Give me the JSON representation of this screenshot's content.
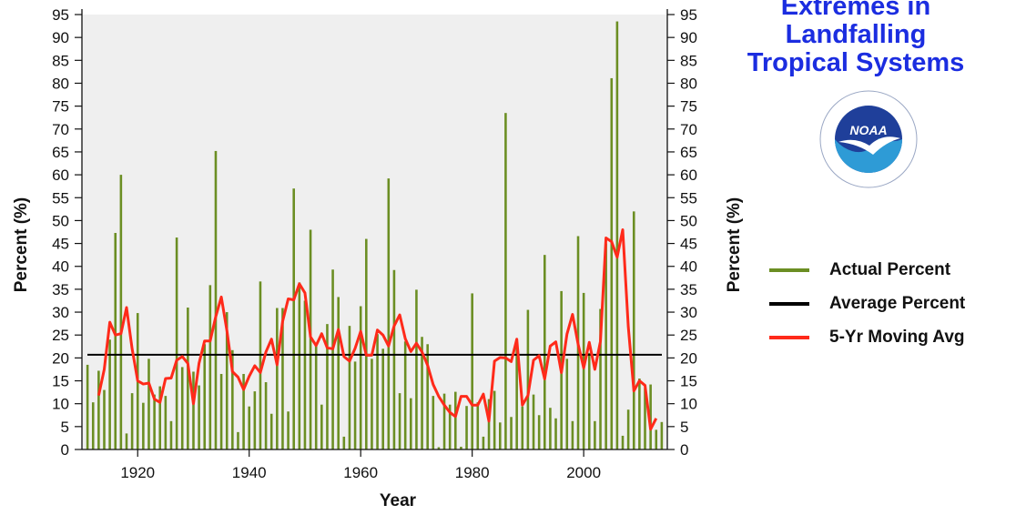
{
  "title_lines": [
    "Extremes in",
    "Landfalling",
    "Tropical Systems"
  ],
  "logo": {
    "text": "NOAA",
    "icon": "noaa-logo-icon"
  },
  "colors": {
    "bars": "#6b8e23",
    "average": "#000000",
    "moving_avg": "#ff2a1a",
    "plot_bg": "#efefef",
    "title": "#1b2de0"
  },
  "chart_data": {
    "type": "bar",
    "xlabel": "Year",
    "ylabel": "Percent (%)",
    "ylabel_right": "Percent (%)",
    "xlim": [
      1910,
      2015
    ],
    "ylim": [
      0,
      95
    ],
    "xticks": [
      1920,
      1940,
      1960,
      1980,
      2000
    ],
    "yticks": [
      0,
      5,
      10,
      15,
      20,
      25,
      30,
      35,
      40,
      45,
      50,
      55,
      60,
      65,
      70,
      75,
      80,
      85,
      90,
      95
    ],
    "grid": false,
    "legend_position": "right",
    "series": [
      {
        "name": "Actual Percent",
        "kind": "bar",
        "x": [
          1911,
          1912,
          1913,
          1914,
          1915,
          1916,
          1917,
          1918,
          1919,
          1920,
          1921,
          1922,
          1923,
          1924,
          1925,
          1926,
          1927,
          1928,
          1929,
          1930,
          1931,
          1932,
          1933,
          1934,
          1935,
          1936,
          1937,
          1938,
          1939,
          1940,
          1941,
          1942,
          1943,
          1944,
          1945,
          1946,
          1947,
          1948,
          1949,
          1950,
          1951,
          1952,
          1953,
          1954,
          1955,
          1956,
          1957,
          1958,
          1959,
          1960,
          1961,
          1962,
          1963,
          1964,
          1965,
          1966,
          1967,
          1968,
          1969,
          1970,
          1971,
          1972,
          1973,
          1974,
          1975,
          1976,
          1977,
          1978,
          1979,
          1980,
          1981,
          1982,
          1983,
          1984,
          1985,
          1986,
          1987,
          1988,
          1989,
          1990,
          1991,
          1992,
          1993,
          1994,
          1995,
          1996,
          1997,
          1998,
          1999,
          2000,
          2001,
          2002,
          2003,
          2004,
          2005,
          2006,
          2007,
          2008,
          2009,
          2010,
          2011,
          2012,
          2013,
          2014
        ],
        "values": [
          18.5,
          10.3,
          17.2,
          13,
          24,
          47.3,
          60,
          3.5,
          12.3,
          29.8,
          10.2,
          19.8,
          12,
          13.8,
          11.7,
          6.2,
          46.3,
          18,
          31,
          17,
          14,
          23,
          35.9,
          65.2,
          16.5,
          30,
          21.7,
          3.8,
          16.5,
          9.4,
          12.7,
          36.7,
          14.7,
          7.8,
          30.9,
          30.9,
          8.3,
          57,
          36.5,
          32.5,
          48,
          23,
          9.8,
          27.4,
          39.3,
          33.3,
          2.8,
          27,
          19.2,
          31.3,
          46,
          19.8,
          25.2,
          22,
          59.2,
          39.2,
          12.3,
          23.6,
          11.2,
          34.9,
          24.6,
          23,
          11.7,
          0.5,
          12.2,
          9.8,
          12.6,
          0.6,
          9.5,
          34.1,
          10.3,
          2.8,
          11,
          12.8,
          5.9,
          73.5,
          7.1,
          23.6,
          9.4,
          30.5,
          12,
          7.5,
          42.5,
          9.1,
          6.8,
          34.6,
          19.8,
          6.2,
          46.6,
          34.2,
          21.1,
          6.2,
          30.7,
          45,
          81.1,
          93.5,
          3,
          8.7,
          52,
          15.5,
          13.4,
          14.2,
          4.3,
          6
        ]
      },
      {
        "name": "Average Percent",
        "kind": "hline",
        "value": 20.7
      },
      {
        "name": "5-Yr Moving Avg",
        "kind": "line",
        "x": [
          1913,
          1914,
          1915,
          1916,
          1917,
          1918,
          1919,
          1920,
          1921,
          1922,
          1923,
          1924,
          1925,
          1926,
          1927,
          1928,
          1929,
          1930,
          1931,
          1932,
          1933,
          1934,
          1935,
          1936,
          1937,
          1938,
          1939,
          1940,
          1941,
          1942,
          1943,
          1944,
          1945,
          1946,
          1947,
          1948,
          1949,
          1950,
          1951,
          1952,
          1953,
          1954,
          1955,
          1956,
          1957,
          1958,
          1959,
          1960,
          1961,
          1962,
          1963,
          1964,
          1965,
          1966,
          1967,
          1968,
          1969,
          1970,
          1971,
          1972,
          1973,
          1974,
          1975,
          1976,
          1977,
          1978,
          1979,
          1980,
          1981,
          1982,
          1983,
          1984,
          1985,
          1986,
          1987,
          1988,
          1989,
          1990,
          1991,
          1992,
          1993,
          1994,
          1995,
          1996,
          1997,
          1998,
          1999,
          2000,
          2001,
          2002,
          2003,
          2004,
          2005,
          2006,
          2007,
          2008,
          2009,
          2010,
          2011,
          2012,
          2013
        ],
        "values": [
          11.8,
          17.5,
          27.8,
          25,
          25.3,
          31,
          22,
          15,
          14.3,
          14.5,
          11,
          10.3,
          15.5,
          15.6,
          19.5,
          20.3,
          18.8,
          10,
          18.8,
          23.7,
          23.7,
          29,
          33.3,
          26,
          17,
          15.8,
          13.1,
          16,
          18.3,
          16.8,
          21.3,
          24.1,
          18.5,
          28,
          32.9,
          32.7,
          36.2,
          34.2,
          24.6,
          22.7,
          25.3,
          22.2,
          22,
          26.2,
          20.3,
          19.3,
          22.1,
          25.8,
          20.6,
          20.6,
          26.1,
          25,
          22.6,
          27,
          29.4,
          24.2,
          21.4,
          23.2,
          21.3,
          18.4,
          14.2,
          11.6,
          9.7,
          8.1,
          7.2,
          11.6,
          11.6,
          9.7,
          9.7,
          12.1,
          6.2,
          19.3,
          20.1,
          20,
          19.2,
          24.1,
          9.7,
          11.8,
          19.5,
          20.5,
          15.4,
          22.6,
          23.5,
          16.8,
          25.2,
          29.5,
          23,
          17.8,
          23.4,
          17.5,
          23.6,
          46.2,
          45.4,
          42,
          48,
          26.8,
          12.8,
          15,
          14,
          4.4,
          6.8
        ]
      }
    ]
  }
}
